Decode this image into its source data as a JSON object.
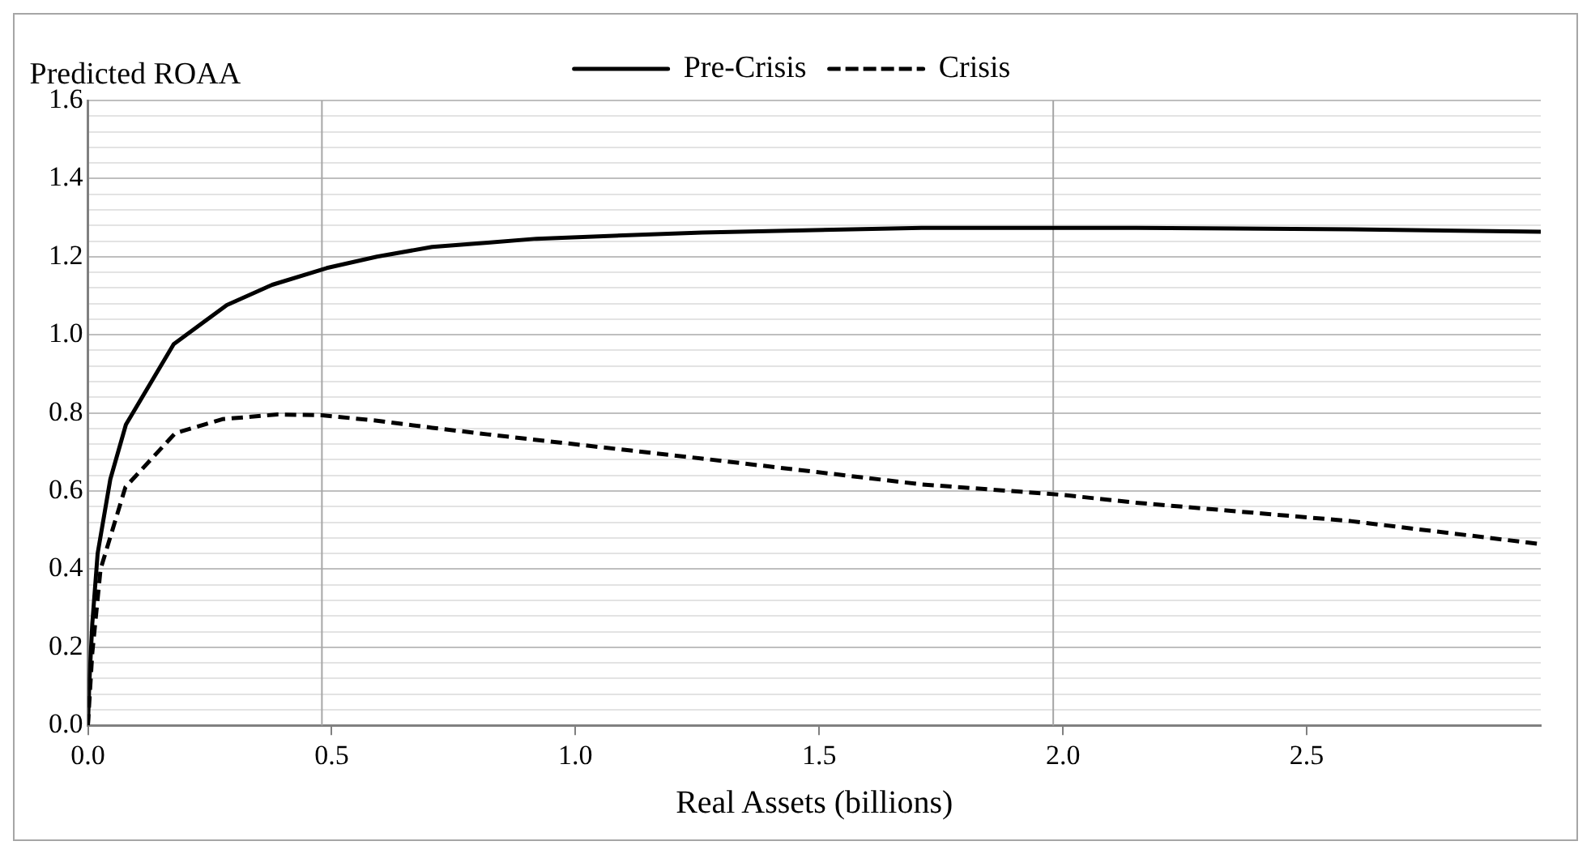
{
  "chart_data": {
    "type": "line",
    "title": "Predicted ROAA",
    "xlabel": "Real Assets (billions)",
    "xlim": [
      0,
      2.98
    ],
    "xticks": [
      {
        "value": 0,
        "label": "0.0"
      },
      {
        "value": 0.5,
        "label": "0.5"
      },
      {
        "value": 1,
        "label": "1.0"
      },
      {
        "value": 1.5,
        "label": "1.5"
      },
      {
        "value": 2,
        "label": "2.0"
      },
      {
        "value": 2.5,
        "label": "2.5"
      }
    ],
    "ylim": [
      0,
      1.6
    ],
    "yticks": [
      {
        "value": 0,
        "label": "0.0"
      },
      {
        "value": 0.04,
        "label": null
      },
      {
        "value": 0.08,
        "label": null
      },
      {
        "value": 0.12,
        "label": null
      },
      {
        "value": 0.16,
        "label": null
      },
      {
        "value": 0.2,
        "label": "0.2"
      },
      {
        "value": 0.24,
        "label": null
      },
      {
        "value": 0.28,
        "label": null
      },
      {
        "value": 0.32,
        "label": null
      },
      {
        "value": 0.36,
        "label": null
      },
      {
        "value": 0.4,
        "label": "0.4"
      },
      {
        "value": 0.44,
        "label": null
      },
      {
        "value": 0.48,
        "label": null
      },
      {
        "value": 0.52,
        "label": null
      },
      {
        "value": 0.56,
        "label": null
      },
      {
        "value": 0.6,
        "label": "0.6"
      },
      {
        "value": 0.64,
        "label": null
      },
      {
        "value": 0.68,
        "label": null
      },
      {
        "value": 0.72,
        "label": null
      },
      {
        "value": 0.76,
        "label": null
      },
      {
        "value": 0.8,
        "label": "0.8"
      },
      {
        "value": 0.84,
        "label": null
      },
      {
        "value": 0.88,
        "label": null
      },
      {
        "value": 0.92,
        "label": null
      },
      {
        "value": 0.96,
        "label": null
      },
      {
        "value": 1,
        "label": "1.0"
      },
      {
        "value": 1.04,
        "label": null
      },
      {
        "value": 1.08,
        "label": null
      },
      {
        "value": 1.12,
        "label": null
      },
      {
        "value": 1.16,
        "label": null
      },
      {
        "value": 1.2,
        "label": "1.2"
      },
      {
        "value": 1.24,
        "label": null
      },
      {
        "value": 1.28,
        "label": null
      },
      {
        "value": 1.32,
        "label": null
      },
      {
        "value": 1.36,
        "label": null
      },
      {
        "value": 1.4,
        "label": "1.4"
      },
      {
        "value": 1.44,
        "label": null
      },
      {
        "value": 1.48,
        "label": null
      },
      {
        "value": 1.52,
        "label": null
      },
      {
        "value": 1.56,
        "label": null
      },
      {
        "value": 1.6,
        "label": "1.6"
      }
    ],
    "grid": "y",
    "legend": "top",
    "marker": "none",
    "ref_lines": [
      {
        "axis": "x",
        "value": 0.48,
        "color": "#a6a6a6"
      },
      {
        "axis": "x",
        "value": 1.98,
        "color": "#a6a6a6"
      }
    ],
    "series": [
      {
        "name": "Pre-Crisis",
        "color": "#000000",
        "line_style": "solid",
        "x": [
          0,
          0.003,
          0.009,
          0.02,
          0.046,
          0.078,
          0.176,
          0.285,
          0.378,
          0.49,
          0.593,
          0.706,
          0.82,
          0.92,
          1.26,
          1.71,
          2.15,
          2.59,
          2.98
        ],
        "values": [
          0,
          0.11,
          0.26,
          0.44,
          0.63,
          0.77,
          0.976,
          1.076,
          1.128,
          1.171,
          1.2,
          1.225,
          1.236,
          1.246,
          1.262,
          1.274,
          1.274,
          1.27,
          1.264
        ]
      },
      {
        "name": "Crisis",
        "color": "#000000",
        "line_style": "dashed",
        "x": [
          0,
          0.009,
          0.026,
          0.077,
          0.179,
          0.276,
          0.389,
          0.48,
          0.593,
          0.706,
          0.82,
          1.26,
          1.71,
          2,
          2.15,
          2.59,
          2.98
        ],
        "values": [
          0,
          0.185,
          0.4,
          0.61,
          0.748,
          0.784,
          0.796,
          0.794,
          0.78,
          0.762,
          0.745,
          0.683,
          0.617,
          0.59,
          0.57,
          0.523,
          0.464
        ]
      }
    ]
  }
}
